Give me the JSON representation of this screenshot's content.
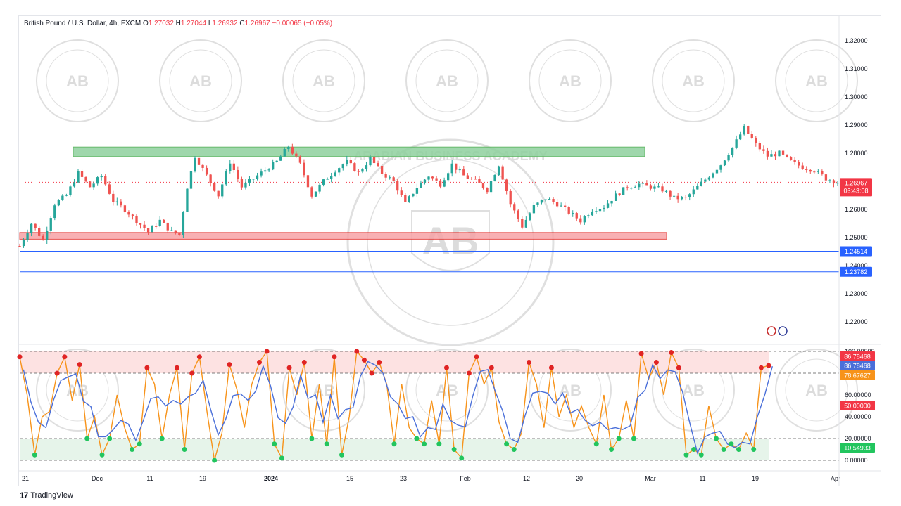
{
  "header": {
    "symbol": "British Pound / U.S. Dollar, 4h, FXCM",
    "open_label": "O",
    "open": "1.27032",
    "high_label": "H",
    "high": "1.27044",
    "low_label": "L",
    "low": "1.26932",
    "close_label": "C",
    "close": "1.26967",
    "change": "−0.00065 (−0.05%)"
  },
  "footer": {
    "brand": "TradingView"
  },
  "watermark": {
    "text": "AB",
    "ring_text": "ARABIAN BUSINESS ACADEMY"
  },
  "colors": {
    "up": "#26a69a",
    "down": "#ef5350",
    "support_zone": "#f7a3a6",
    "resistance_zone": "#8fd19e",
    "k_line": "#f7931a",
    "d_line": "#4a6fd9",
    "overbought_zone": "#fde2e2",
    "oversold_zone": "#e6f4ea",
    "hline": "#2962ff",
    "price_tag": "#f23645"
  },
  "chart_data": [
    {
      "type": "candlestick",
      "ylim": [
        1.215,
        1.325
      ],
      "y_ticks": [
        "1.32000",
        "1.31000",
        "1.30000",
        "1.29000",
        "1.28000",
        "1.27000",
        "1.26000",
        "1.25000",
        "1.24000",
        "1.23000",
        "1.22000"
      ],
      "x_ticks": [
        "21",
        "Dec",
        "11",
        "19",
        "2024",
        "15",
        "23",
        "Feb",
        "12",
        "20",
        "Mar",
        "11",
        "19",
        "Apr"
      ],
      "price_path": [
        [
          0,
          1.247
        ],
        [
          3,
          1.255
        ],
        [
          6,
          1.249
        ],
        [
          9,
          1.262
        ],
        [
          12,
          1.265
        ],
        [
          15,
          1.273
        ],
        [
          18,
          1.268
        ],
        [
          21,
          1.272
        ],
        [
          24,
          1.263
        ],
        [
          27,
          1.26
        ],
        [
          30,
          1.256
        ],
        [
          33,
          1.252
        ],
        [
          36,
          1.256
        ],
        [
          39,
          1.252
        ],
        [
          41,
          1.251
        ],
        [
          43,
          1.268
        ],
        [
          45,
          1.279
        ],
        [
          48,
          1.272
        ],
        [
          51,
          1.265
        ],
        [
          54,
          1.277
        ],
        [
          57,
          1.268
        ],
        [
          60,
          1.271
        ],
        [
          63,
          1.274
        ],
        [
          66,
          1.277
        ],
        [
          69,
          1.2825
        ],
        [
          72,
          1.276
        ],
        [
          75,
          1.265
        ],
        [
          78,
          1.27
        ],
        [
          81,
          1.274
        ],
        [
          84,
          1.277
        ],
        [
          87,
          1.273
        ],
        [
          90,
          1.278
        ],
        [
          93,
          1.273
        ],
        [
          96,
          1.27
        ],
        [
          99,
          1.262
        ],
        [
          102,
          1.268
        ],
        [
          105,
          1.272
        ],
        [
          108,
          1.269
        ],
        [
          111,
          1.276
        ],
        [
          114,
          1.272
        ],
        [
          117,
          1.27
        ],
        [
          120,
          1.267
        ],
        [
          123,
          1.276
        ],
        [
          126,
          1.262
        ],
        [
          129,
          1.254
        ],
        [
          132,
          1.261
        ],
        [
          135,
          1.264
        ],
        [
          138,
          1.262
        ],
        [
          141,
          1.259
        ],
        [
          144,
          1.256
        ],
        [
          147,
          1.26
        ],
        [
          150,
          1.261
        ],
        [
          153,
          1.265
        ],
        [
          156,
          1.268
        ],
        [
          159,
          1.269
        ],
        [
          162,
          1.268
        ],
        [
          165,
          1.267
        ],
        [
          168,
          1.264
        ],
        [
          171,
          1.264
        ],
        [
          174,
          1.268
        ],
        [
          177,
          1.272
        ],
        [
          180,
          1.276
        ],
        [
          183,
          1.282
        ],
        [
          186,
          1.289
        ],
        [
          189,
          1.283
        ],
        [
          192,
          1.279
        ],
        [
          195,
          1.28
        ],
        [
          198,
          1.277
        ],
        [
          201,
          1.275
        ],
        [
          204,
          1.274
        ],
        [
          207,
          1.271
        ],
        [
          210,
          1.2697
        ]
      ],
      "zones": [
        {
          "name": "resistance",
          "from": 1.2788,
          "to": 1.2822
        },
        {
          "name": "support",
          "from": 1.2494,
          "to": 1.2518
        }
      ],
      "hlines": [
        {
          "value": 1.24514,
          "label": "1.24514"
        },
        {
          "value": 1.23782,
          "label": "1.23782"
        }
      ],
      "last_price": {
        "value": 1.26967,
        "label": "1.26967",
        "countdown": "03:43:08"
      }
    },
    {
      "type": "line",
      "name": "stochastic",
      "ylim": [
        0,
        100
      ],
      "y_ticks": [
        "100.00000",
        "80.00000",
        "60.00000",
        "40.00000",
        "20.00000",
        "0.00000"
      ],
      "levels": {
        "upper": 80,
        "middle": 50,
        "lower": 20
      },
      "labels": [
        {
          "value": 86.78468,
          "label": "86.78468",
          "color": "#f23645"
        },
        {
          "value": 86.78468,
          "label": "86.78468",
          "color": "#4a6fd9"
        },
        {
          "value": 78.67627,
          "label": "78.67627",
          "color": "#f7931a"
        },
        {
          "value": 50.0,
          "label": "50.00000",
          "color": "#f23645"
        },
        {
          "value": 10.54933,
          "label": "10.54933",
          "color": "#22c55e"
        }
      ],
      "k_path": [
        [
          0,
          95
        ],
        [
          2,
          60
        ],
        [
          4,
          5
        ],
        [
          6,
          40
        ],
        [
          8,
          45
        ],
        [
          10,
          80
        ],
        [
          12,
          95
        ],
        [
          14,
          55
        ],
        [
          16,
          88
        ],
        [
          18,
          20
        ],
        [
          20,
          40
        ],
        [
          22,
          5
        ],
        [
          24,
          20
        ],
        [
          26,
          60
        ],
        [
          28,
          30
        ],
        [
          30,
          10
        ],
        [
          32,
          15
        ],
        [
          34,
          85
        ],
        [
          36,
          70
        ],
        [
          38,
          20
        ],
        [
          40,
          60
        ],
        [
          42,
          85
        ],
        [
          44,
          10
        ],
        [
          46,
          80
        ],
        [
          48,
          95
        ],
        [
          50,
          45
        ],
        [
          52,
          0
        ],
        [
          54,
          25
        ],
        [
          56,
          88
        ],
        [
          58,
          65
        ],
        [
          60,
          30
        ],
        [
          62,
          70
        ],
        [
          64,
          90
        ],
        [
          66,
          100
        ],
        [
          68,
          15
        ],
        [
          70,
          2
        ],
        [
          72,
          85
        ],
        [
          74,
          60
        ],
        [
          76,
          90
        ],
        [
          78,
          20
        ],
        [
          80,
          70
        ],
        [
          82,
          15
        ],
        [
          84,
          95
        ],
        [
          86,
          5
        ],
        [
          88,
          40
        ],
        [
          90,
          100
        ],
        [
          92,
          92
        ],
        [
          94,
          80
        ],
        [
          96,
          90
        ],
        [
          98,
          70
        ],
        [
          100,
          15
        ],
        [
          102,
          70
        ],
        [
          104,
          30
        ],
        [
          106,
          20
        ],
        [
          108,
          15
        ],
        [
          110,
          55
        ],
        [
          112,
          15
        ],
        [
          114,
          85
        ],
        [
          116,
          10
        ],
        [
          118,
          2
        ],
        [
          120,
          80
        ],
        [
          122,
          95
        ],
        [
          124,
          70
        ],
        [
          126,
          85
        ],
        [
          128,
          35
        ],
        [
          130,
          15
        ],
        [
          132,
          10
        ],
        [
          134,
          25
        ],
        [
          136,
          90
        ],
        [
          138,
          70
        ],
        [
          140,
          30
        ],
        [
          142,
          85
        ],
        [
          144,
          40
        ],
        [
          146,
          60
        ],
        [
          148,
          30
        ],
        [
          150,
          50
        ],
        [
          152,
          30
        ],
        [
          154,
          15
        ],
        [
          156,
          60
        ],
        [
          158,
          10
        ],
        [
          160,
          20
        ],
        [
          162,
          55
        ],
        [
          164,
          20
        ],
        [
          166,
          98
        ],
        [
          168,
          75
        ],
        [
          170,
          90
        ],
        [
          172,
          60
        ],
        [
          174,
          99
        ],
        [
          176,
          85
        ],
        [
          178,
          5
        ],
        [
          180,
          10
        ],
        [
          182,
          5
        ],
        [
          184,
          50
        ],
        [
          186,
          20
        ],
        [
          188,
          10
        ],
        [
          190,
          15
        ],
        [
          192,
          10
        ],
        [
          194,
          25
        ],
        [
          196,
          10
        ],
        [
          198,
          85
        ],
        [
          200,
          87
        ]
      ],
      "d_offset": 1
    }
  ]
}
